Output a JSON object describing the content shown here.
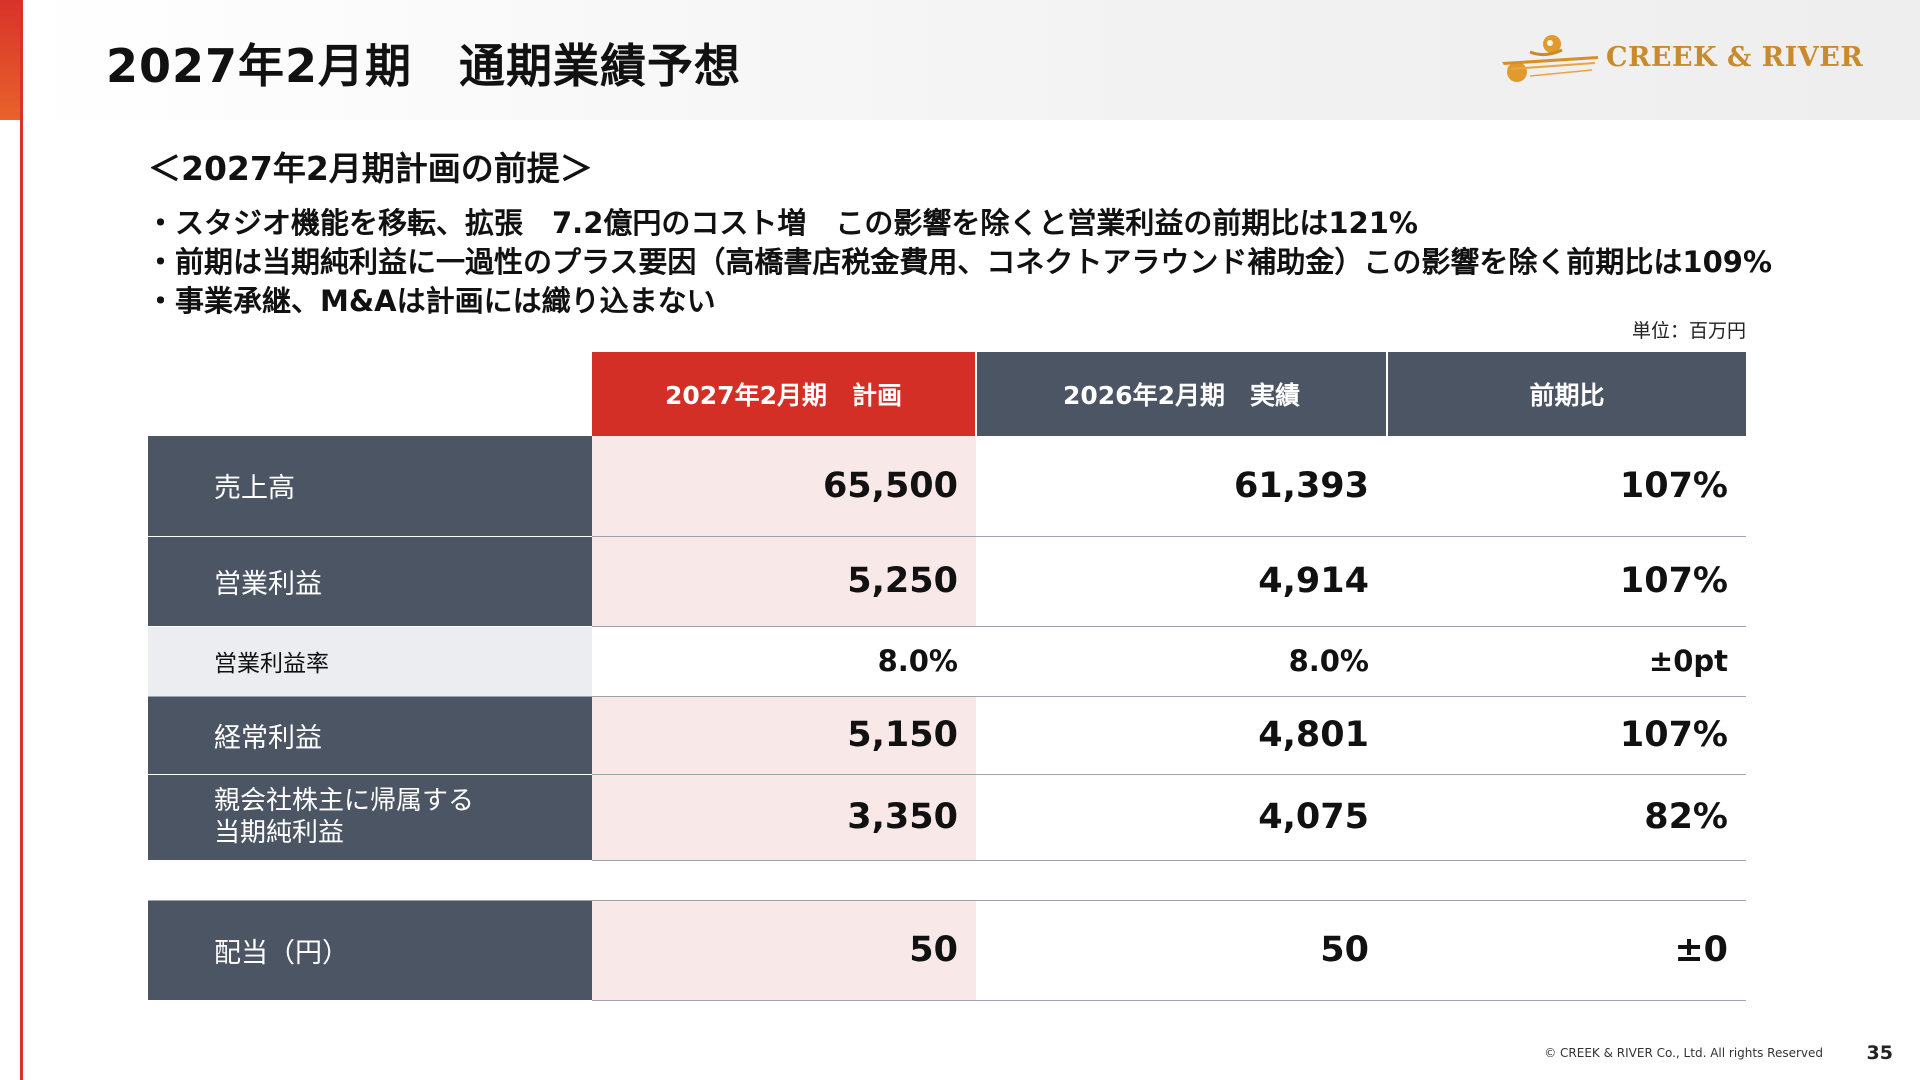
{
  "header": {
    "title": "2027年2月期　通期業績予想",
    "logo_text": "CREEK & RIVER"
  },
  "premise": {
    "title": "＜2027年2月期計画の前提＞",
    "bullets": [
      "・スタジオ機能を移転、拡張　7.2億円のコスト増　この影響を除くと営業利益の前期比は121%",
      "・前期は当期純利益に一過性のプラス要因（高橋書店税金費用、コネクトアラウンド補助金）この影響を除く前期比は109%",
      "・事業承継、M&Aは計画には織り込まない"
    ],
    "unit": "単位：百万円"
  },
  "table": {
    "headers": [
      "2027年2月期　計画",
      "2026年2月期　実績",
      "前期比"
    ],
    "rows": [
      {
        "label": "売上高",
        "plan": "65,500",
        "actual": "61,393",
        "ratio": "107%"
      },
      {
        "label": "営業利益",
        "plan": "5,250",
        "actual": "4,914",
        "ratio": "107%"
      },
      {
        "label": "営業利益率",
        "plan": "8.0%",
        "actual": "8.0%",
        "ratio": "±0pt"
      },
      {
        "label": "経常利益",
        "plan": "5,150",
        "actual": "4,801",
        "ratio": "107%"
      },
      {
        "label_line1": "親会社株主に帰属する",
        "label_line2": "当期純利益",
        "plan": "3,350",
        "actual": "4,075",
        "ratio": "82%"
      },
      {
        "label": "配当（円）",
        "plan": "50",
        "actual": "50",
        "ratio": "±0"
      }
    ]
  },
  "footer": {
    "copyright": "© CREEK & RIVER Co., Ltd. All rights Reserved",
    "page_number": "35"
  },
  "colors": {
    "accent_red": "#d32f26",
    "header_slate": "#4b5563",
    "plan_tint": "#f9e8e8",
    "logo_gold": "#c98a2b"
  }
}
